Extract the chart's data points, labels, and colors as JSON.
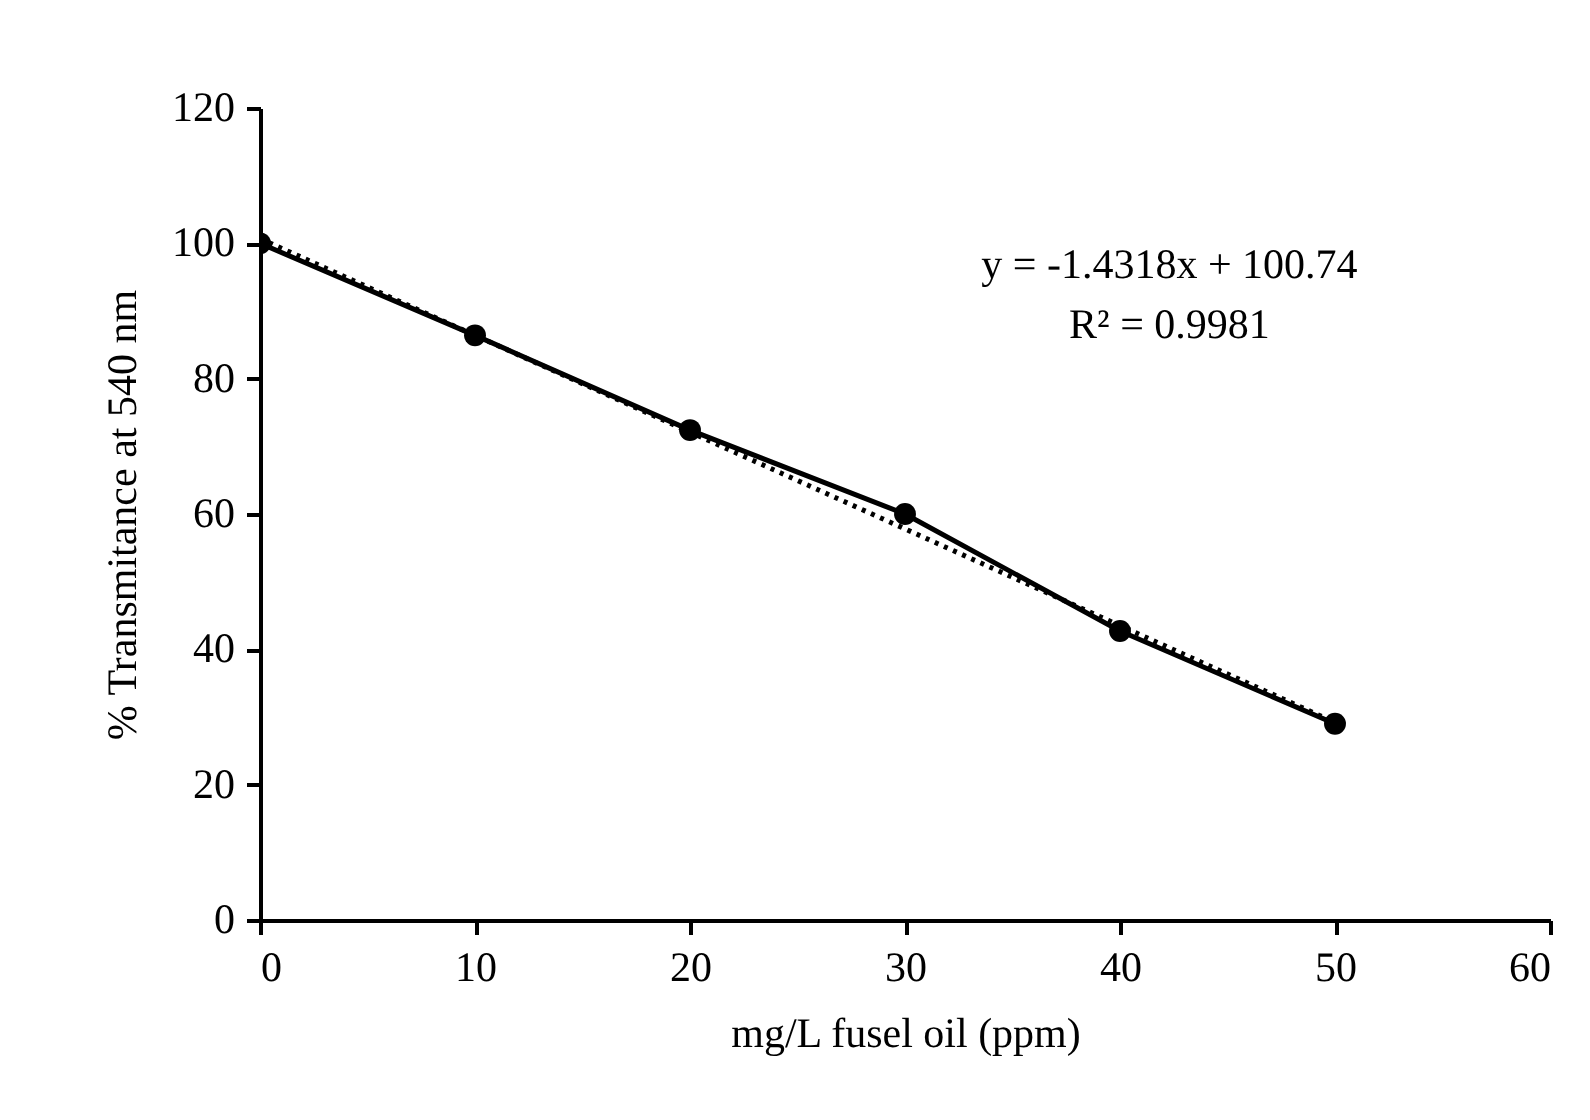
{
  "chart_data": {
    "type": "line",
    "xlabel": "mg/L fusel oil (ppm)",
    "ylabel": "% Transmitance at 540 nm",
    "x": [
      0,
      10,
      20,
      30,
      40,
      50
    ],
    "series": [
      {
        "color": "#000000",
        "marker": "circle",
        "line_style": "solid",
        "values": [
          100,
          86.4,
          72.4,
          60,
          42.7,
          29
        ]
      },
      {
        "color": "#000000",
        "line_style": "dotted",
        "x": [
          0,
          50
        ],
        "values": [
          100.7,
          29.2
        ]
      }
    ],
    "annotations": [
      "y = -1.4318x + 100.74",
      "R² = 0.9981"
    ],
    "xlim": [
      0,
      60
    ],
    "xticks": [
      0,
      10,
      20,
      30,
      40,
      50,
      60
    ],
    "ylim": [
      0,
      120
    ],
    "yticks": [
      0,
      20,
      40,
      60,
      80,
      100,
      120
    ],
    "grid": false
  }
}
